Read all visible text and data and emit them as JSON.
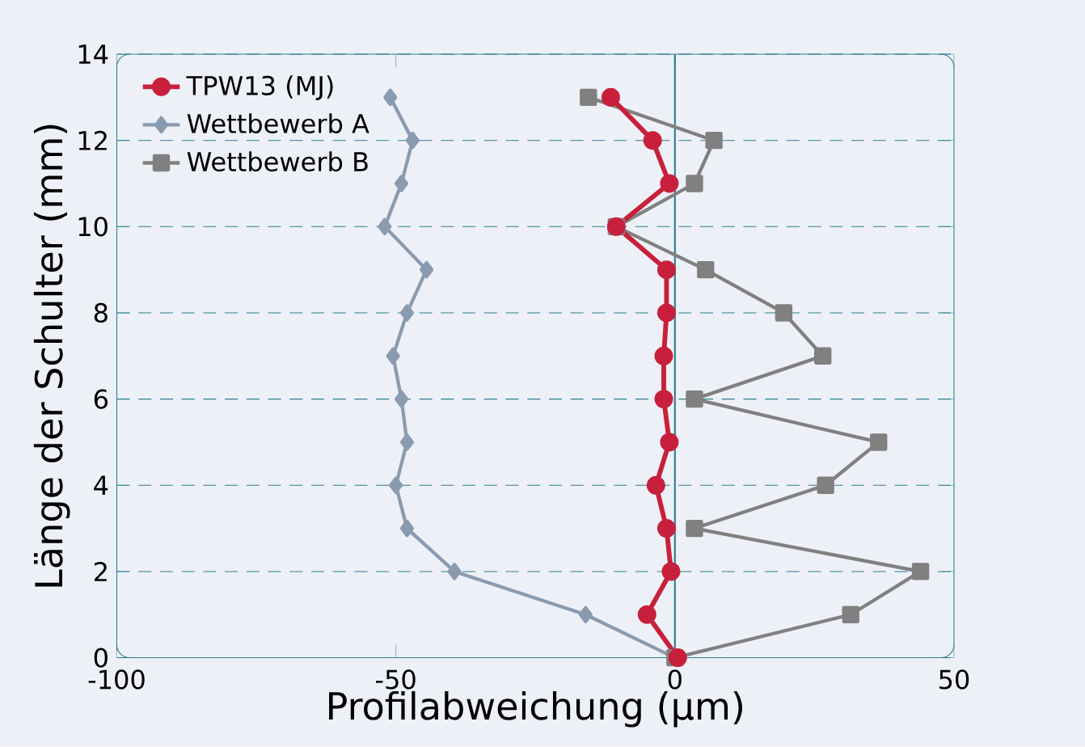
{
  "chart_data": {
    "type": "line",
    "xlabel": "Profilabweichung (µm)",
    "ylabel": "Länge der Schulter (mm)",
    "xlim": [
      -100,
      50
    ],
    "xticks": [
      -100,
      -50,
      0,
      50
    ],
    "ylim": [
      0,
      14
    ],
    "yticks": [
      0,
      2,
      4,
      6,
      8,
      10,
      12,
      14
    ],
    "grid": "y",
    "legend": "top left",
    "line_style": "solid",
    "ref_lines": [
      {
        "axis": "x",
        "value": 0,
        "color": "#2a7f8f"
      }
    ],
    "series": [
      {
        "name": "TPW13 (MJ)",
        "color": "#c8203c",
        "marker": "circle",
        "x": [
          0.5,
          -5,
          -0.7,
          -1.5,
          -3.4,
          -1,
          -2,
          -2,
          -1.5,
          -1.5,
          -10.5,
          -1,
          -4,
          -11.5
        ],
        "values": [
          0,
          1,
          2,
          3,
          4,
          5,
          6,
          7,
          8,
          9,
          10,
          11,
          12,
          13
        ]
      },
      {
        "name": "Wettbewerb A",
        "color": "#8a9bb0",
        "marker": "diamond",
        "x": [
          0,
          -16,
          -39.5,
          -48,
          -50,
          -48,
          -49,
          -50.5,
          -48,
          -44.5,
          -52,
          -49,
          -47,
          -51
        ],
        "values": [
          0,
          1,
          2,
          3,
          4,
          5,
          6,
          7,
          8,
          9,
          10,
          11,
          12,
          13
        ]
      },
      {
        "name": "Wettbewerb B",
        "color": "#808080",
        "marker": "square",
        "x": [
          0,
          31.5,
          44,
          3.5,
          27,
          36.5,
          3.5,
          26.5,
          19.5,
          5.5,
          -10.5,
          3.5,
          7,
          -15.5
        ],
        "values": [
          0,
          1,
          2,
          3,
          4,
          5,
          6,
          7,
          8,
          9,
          10,
          11,
          12,
          13
        ]
      }
    ]
  }
}
